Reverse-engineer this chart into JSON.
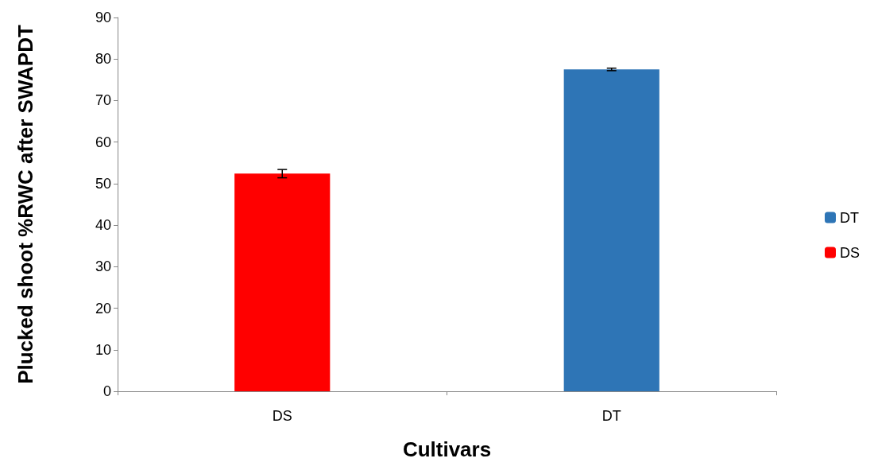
{
  "chart_data": {
    "type": "bar",
    "xlabel": "Cultivars",
    "ylabel": "Plucked shoot %RWC after SWAPDT",
    "categories": [
      "DS",
      "DT"
    ],
    "stacked": true,
    "series": [
      {
        "name": "DT",
        "color": "#2e75b6",
        "values": [
          null,
          77.5
        ],
        "errors": [
          null,
          0.3
        ]
      },
      {
        "name": "DS",
        "color": "#ff0000",
        "values": [
          52.4,
          null
        ],
        "errors": [
          1.0,
          null
        ]
      }
    ],
    "ylim": [
      0,
      90
    ],
    "yticks": [
      0,
      10,
      20,
      30,
      40,
      50,
      60,
      70,
      80,
      90
    ],
    "grid": false,
    "legend": "right"
  }
}
